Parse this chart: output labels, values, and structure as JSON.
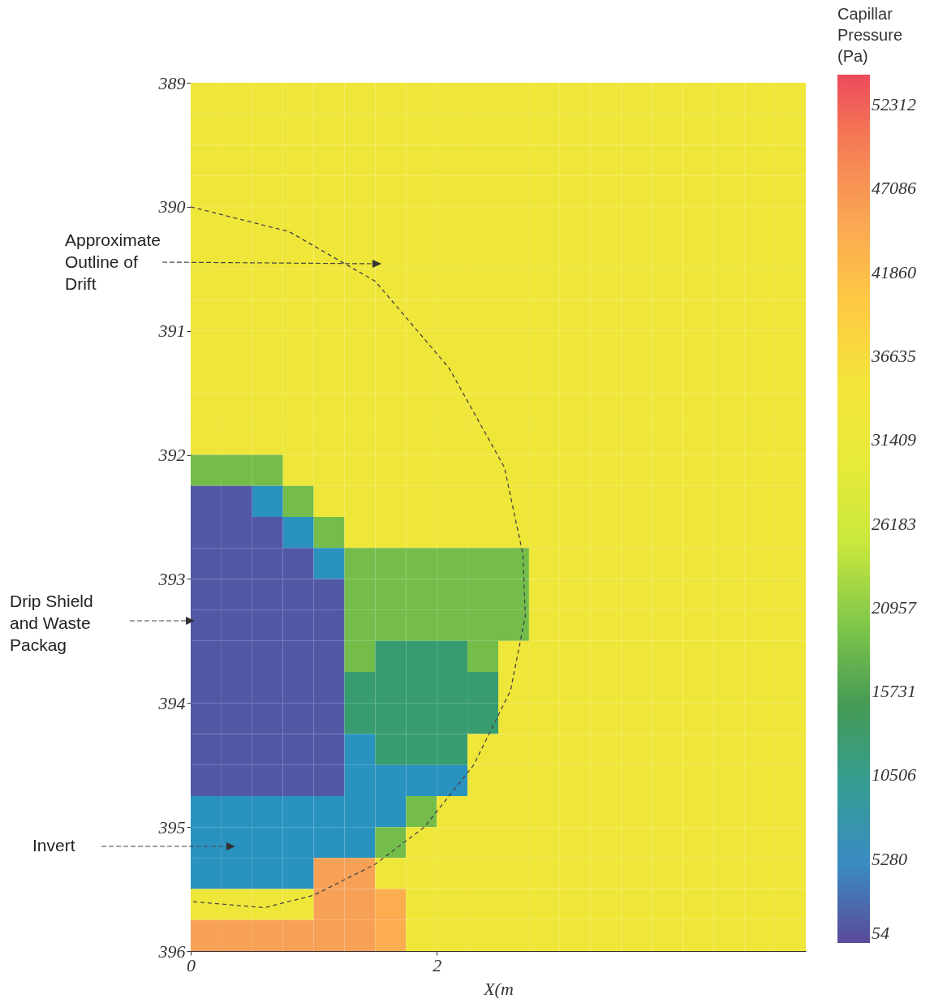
{
  "chart_data": {
    "type": "heatmap",
    "xlabel": "X(m",
    "clabel": "Capillar Pressure (Pa)",
    "xlim": [
      0,
      5
    ],
    "xticks": [
      0,
      2
    ],
    "ylim": [
      396,
      389
    ],
    "yticks": [
      389,
      390,
      391,
      392,
      393,
      394,
      395,
      396
    ],
    "clim": [
      54,
      54184
    ],
    "series": [
      {
        "type": "line",
        "color": "#444444",
        "line_style": "dashed",
        "x": [
          0,
          0.8,
          1.5,
          2.1,
          2.55,
          2.7,
          2.72,
          2.6,
          2.3,
          1.9,
          1.5,
          1.0,
          0.6,
          0
        ],
        "values": [
          390,
          390.2,
          390.6,
          391.3,
          392.1,
          392.8,
          393.3,
          393.9,
          394.5,
          395,
          395.3,
          395.55,
          395.65,
          395.6
        ]
      }
    ],
    "cticks": [
      54,
      5280,
      10506,
      15731,
      20957,
      26183,
      31409,
      36635,
      41860,
      47086,
      52312
    ],
    "annotations": [
      "Approximate Outline of Drift",
      "Drip Shield and Waste Packag",
      "Invert"
    ],
    "x": [
      0.125,
      0.375,
      0.625,
      0.875,
      1.125,
      1.375,
      1.625,
      1.875,
      2.125,
      2.375,
      2.625,
      2.875,
      3.125,
      3.375,
      3.625,
      3.875,
      4.125,
      4.375,
      4.625,
      4.875
    ],
    "y": [
      389.125,
      389.375,
      389.625,
      389.875,
      390.125,
      390.375,
      390.625,
      390.875,
      391.125,
      391.375,
      391.625,
      391.875,
      392.125,
      392.375,
      392.625,
      392.875,
      393.125,
      393.375,
      393.625,
      393.875,
      394.125,
      394.375,
      394.625,
      394.875,
      395.125,
      395.375,
      395.625,
      395.875
    ],
    "cells": [
      [
        33000,
        33000,
        33000,
        33000,
        33000,
        33000,
        33000,
        33000,
        33000,
        33000,
        33000,
        33000,
        33000,
        33000,
        33000,
        33000,
        33000,
        33000,
        33000,
        33000
      ],
      [
        33000,
        33000,
        33000,
        33000,
        33000,
        33000,
        33000,
        33000,
        33000,
        33000,
        33000,
        33000,
        33000,
        33000,
        33000,
        33000,
        33000,
        33000,
        33000,
        33000
      ],
      [
        33000,
        33000,
        33000,
        33000,
        33000,
        33000,
        33000,
        33000,
        33000,
        33000,
        33000,
        33000,
        33000,
        33000,
        33000,
        33000,
        33000,
        33000,
        33000,
        33000
      ],
      [
        33000,
        33000,
        33000,
        33000,
        33000,
        33000,
        33000,
        33000,
        33000,
        33000,
        33000,
        33000,
        33000,
        33000,
        33000,
        33000,
        33000,
        33000,
        33000,
        33000
      ],
      [
        33000,
        33000,
        33000,
        33000,
        33000,
        33000,
        33000,
        33000,
        33000,
        33000,
        33000,
        33000,
        33000,
        33000,
        33000,
        33000,
        33000,
        33000,
        33000,
        33000
      ],
      [
        33000,
        33000,
        33000,
        33000,
        33000,
        33000,
        33000,
        33000,
        33000,
        33000,
        33000,
        33000,
        33000,
        33000,
        33000,
        33000,
        33000,
        33000,
        33000,
        33000
      ],
      [
        33000,
        33000,
        33000,
        33000,
        33000,
        33000,
        33000,
        33000,
        33000,
        33000,
        33000,
        33000,
        33000,
        33000,
        33000,
        33000,
        33000,
        33000,
        33000,
        33000
      ],
      [
        33000,
        33000,
        33000,
        33000,
        33000,
        33000,
        33000,
        33000,
        33000,
        33000,
        33000,
        33000,
        33000,
        33000,
        33000,
        33000,
        33000,
        33000,
        33000,
        33000
      ],
      [
        33000,
        33000,
        33000,
        33000,
        33000,
        33000,
        33000,
        33000,
        33000,
        33000,
        33000,
        33000,
        33000,
        33000,
        33000,
        33000,
        33000,
        33000,
        33000,
        33000
      ],
      [
        33000,
        33000,
        33000,
        33000,
        33000,
        33000,
        33000,
        33000,
        33000,
        33000,
        33000,
        33000,
        33000,
        33000,
        33000,
        33000,
        33000,
        33000,
        33000,
        33000
      ],
      [
        33000,
        33000,
        33000,
        33000,
        33000,
        33000,
        33000,
        33000,
        33000,
        33000,
        33000,
        33000,
        33000,
        33000,
        33000,
        33000,
        33000,
        33000,
        33000,
        33000
      ],
      [
        33000,
        33000,
        33000,
        33000,
        33000,
        33000,
        33000,
        33000,
        33000,
        33000,
        33000,
        33000,
        33000,
        33000,
        33000,
        33000,
        33000,
        33000,
        33000,
        33000
      ],
      [
        19000,
        19000,
        19000,
        33000,
        33000,
        33000,
        33000,
        33000,
        33000,
        33000,
        33000,
        33000,
        33000,
        33000,
        33000,
        33000,
        33000,
        33000,
        33000,
        33000
      ],
      [
        1000,
        1000,
        6000,
        19000,
        33000,
        33000,
        33000,
        33000,
        33000,
        33000,
        33000,
        33000,
        33000,
        33000,
        33000,
        33000,
        33000,
        33000,
        33000,
        33000
      ],
      [
        1000,
        1000,
        1000,
        6000,
        19000,
        33000,
        33000,
        33000,
        33000,
        33000,
        33000,
        33000,
        33000,
        33000,
        33000,
        33000,
        33000,
        33000,
        33000,
        33000
      ],
      [
        1000,
        1000,
        1000,
        1000,
        6000,
        19000,
        19000,
        19000,
        19000,
        19000,
        19000,
        33000,
        33000,
        33000,
        33000,
        33000,
        33000,
        33000,
        33000,
        33000
      ],
      [
        1000,
        1000,
        1000,
        1000,
        1000,
        19000,
        19000,
        19000,
        19000,
        19000,
        19000,
        33000,
        33000,
        33000,
        33000,
        33000,
        33000,
        33000,
        33000,
        33000
      ],
      [
        1000,
        1000,
        1000,
        1000,
        1000,
        19000,
        19000,
        19000,
        19000,
        19000,
        19000,
        33000,
        33000,
        33000,
        33000,
        33000,
        33000,
        33000,
        33000,
        33000
      ],
      [
        1000,
        1000,
        1000,
        1000,
        1000,
        19000,
        13000,
        13000,
        13000,
        19000,
        33000,
        33000,
        33000,
        33000,
        33000,
        33000,
        33000,
        33000,
        33000,
        33000
      ],
      [
        1000,
        1000,
        1000,
        1000,
        1000,
        13000,
        13000,
        13000,
        13000,
        13000,
        33000,
        33000,
        33000,
        33000,
        33000,
        33000,
        33000,
        33000,
        33000,
        33000
      ],
      [
        1000,
        1000,
        1000,
        1000,
        1000,
        13000,
        13000,
        13000,
        13000,
        13000,
        33000,
        33000,
        33000,
        33000,
        33000,
        33000,
        33000,
        33000,
        33000,
        33000
      ],
      [
        1000,
        1000,
        1000,
        1000,
        1000,
        6000,
        13000,
        13000,
        13000,
        33000,
        33000,
        33000,
        33000,
        33000,
        33000,
        33000,
        33000,
        33000,
        33000,
        33000
      ],
      [
        1000,
        1000,
        1000,
        1000,
        1000,
        6000,
        6000,
        6000,
        6000,
        33000,
        33000,
        33000,
        33000,
        33000,
        33000,
        33000,
        33000,
        33000,
        33000,
        33000
      ],
      [
        6000,
        6000,
        6000,
        6000,
        6000,
        6000,
        6000,
        19000,
        33000,
        33000,
        33000,
        33000,
        33000,
        33000,
        33000,
        33000,
        33000,
        33000,
        33000,
        33000
      ],
      [
        6000,
        6000,
        6000,
        6000,
        6000,
        6000,
        19000,
        33000,
        33000,
        33000,
        33000,
        33000,
        33000,
        33000,
        33000,
        33000,
        33000,
        33000,
        33000,
        33000
      ],
      [
        6000,
        6000,
        6000,
        6000,
        46000,
        46000,
        33000,
        33000,
        33000,
        33000,
        33000,
        33000,
        33000,
        33000,
        33000,
        33000,
        33000,
        33000,
        33000,
        33000
      ],
      [
        33000,
        33000,
        33000,
        33000,
        46000,
        46000,
        44000,
        33000,
        33000,
        33000,
        33000,
        33000,
        33000,
        33000,
        33000,
        33000,
        33000,
        33000,
        33000,
        33000
      ],
      [
        46000,
        46000,
        46000,
        46000,
        46000,
        46000,
        44000,
        33000,
        33000,
        33000,
        33000,
        33000,
        33000,
        33000,
        33000,
        33000,
        33000,
        33000,
        33000,
        33000
      ]
    ]
  }
}
